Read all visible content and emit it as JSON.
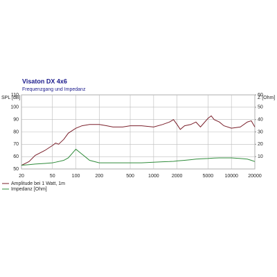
{
  "chart_data": {
    "type": "line",
    "title": "Visaton DX 4x6",
    "subtitle": "Frequenzgang und Impedanz",
    "y_label": "SPL [dB]",
    "y2_label": "Z [Ohm]",
    "xscale": "log",
    "grid": true,
    "x": [
      20,
      25,
      30,
      40,
      50,
      55,
      60,
      70,
      80,
      100,
      120,
      150,
      200,
      250,
      300,
      400,
      500,
      700,
      1000,
      1300,
      1600,
      1800,
      2000,
      2200,
      2500,
      3000,
      3500,
      4000,
      5000,
      5500,
      6000,
      7000,
      8000,
      10000,
      13000,
      16000,
      18000,
      20000
    ],
    "series": [
      {
        "name": "Amplitude bei 1 Watt, 1m",
        "color": "#7a1f2a",
        "values": [
          53,
          56,
          61,
          65,
          69,
          71,
          70,
          74,
          79,
          83,
          85,
          86,
          86,
          85,
          84,
          84,
          85,
          85,
          84,
          86,
          88,
          90,
          86,
          82,
          85,
          86,
          88,
          84,
          91,
          93,
          90,
          88,
          85,
          83,
          84,
          88,
          89,
          84
        ]
      },
      {
        "name": "Impedanz [Ohm]",
        "color": "#2e8b3a",
        "axis": "y2",
        "values": [
          3,
          3.5,
          4,
          4.5,
          5,
          5.5,
          6,
          7,
          9,
          16,
          12,
          7,
          5,
          5,
          5,
          5,
          5,
          5,
          5.5,
          5.8,
          6,
          6.2,
          6.5,
          6.7,
          7,
          7.5,
          8,
          8.2,
          8.5,
          8.7,
          8.8,
          9,
          9,
          9,
          8.5,
          8,
          7,
          6
        ]
      }
    ],
    "xlim": [
      20,
      20000
    ],
    "xticks": [
      20,
      50,
      100,
      200,
      500,
      1000,
      2000,
      5000,
      10000,
      20000
    ],
    "ylim": [
      50,
      110
    ],
    "yticks": [
      50,
      60,
      70,
      80,
      90,
      100,
      110
    ],
    "y2lim": [
      0,
      60
    ],
    "y2ticks": [
      10,
      20,
      30,
      40,
      50,
      60
    ]
  }
}
